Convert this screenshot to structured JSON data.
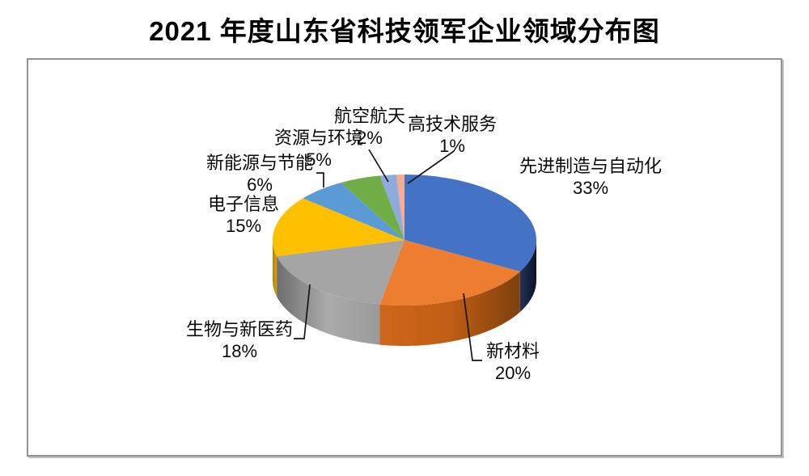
{
  "title": "2021 年度山东省科技领军企业领域分布图",
  "chart_data": {
    "type": "pie",
    "projection": "3d",
    "title": "2021 年度山东省科技领军企业领域分布图",
    "start_angle_deg": 0,
    "direction": "clockwise",
    "legend": "none",
    "label_style": "outside-name-and-percent",
    "slices": [
      {
        "label": "先进制造与自动化",
        "value": 33,
        "pct_label": "33%",
        "color": "#4472C4",
        "side": [
          "#22345C",
          "#17233F",
          "#0D1527"
        ]
      },
      {
        "label": "新材料",
        "value": 20,
        "pct_label": "20%",
        "color": "#ED7D31",
        "side": [
          "#CE671C",
          "#C05E15",
          "#7E400F"
        ]
      },
      {
        "label": "生物与新医药",
        "value": 18,
        "pct_label": "18%",
        "color": "#A5A5A5",
        "side": [
          "#6E6E6E",
          "#ABABAB",
          "#9A9A9A"
        ]
      },
      {
        "label": "电子信息",
        "value": 15,
        "pct_label": "15%",
        "color": "#FFC000",
        "side": [
          "#B3850A",
          "#D3A005"
        ]
      },
      {
        "label": "新能源与节能",
        "value": 6,
        "pct_label": "6%",
        "color": "#5B9BD5"
      },
      {
        "label": "资源与环境",
        "value": 5,
        "pct_label": "5%",
        "color": "#70AD47"
      },
      {
        "label": "航空航天",
        "value": 2,
        "pct_label": "2%",
        "color": "#8FAADC"
      },
      {
        "label": "高技术服务",
        "value": 1,
        "pct_label": "1%",
        "color": "#F4AD90"
      }
    ]
  }
}
